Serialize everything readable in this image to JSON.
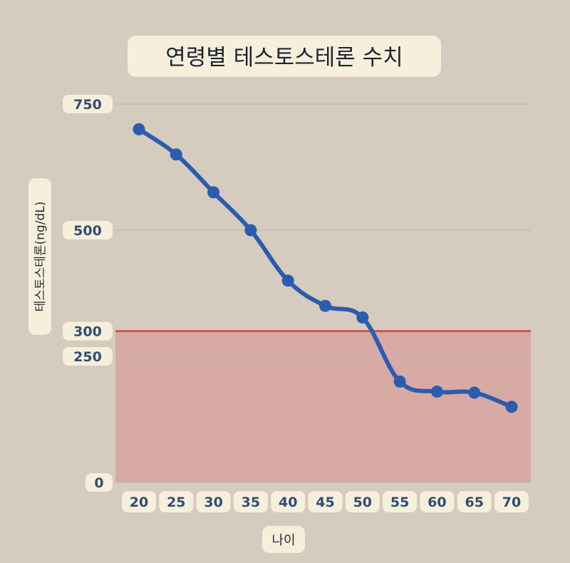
{
  "chart_data": {
    "type": "line",
    "title": "연령별 테스토스테론 수치",
    "xlabel": "나이",
    "ylabel": "테스토스테론(ng/dL)",
    "x": [
      20,
      25,
      30,
      35,
      40,
      45,
      50,
      55,
      60,
      65,
      70
    ],
    "y": [
      700,
      650,
      575,
      500,
      400,
      350,
      327,
      200,
      180,
      178,
      150
    ],
    "ylim": [
      0,
      750
    ],
    "yticks": [
      0,
      250,
      300,
      500,
      750
    ],
    "threshold": {
      "value": 300
    },
    "grid": true,
    "colors": {
      "line": "#2b5cae",
      "threshold_line": "#c9474a",
      "shade": "#d7aaa3",
      "gridline": "#bcb7c2",
      "label_text": "#334d72"
    }
  }
}
